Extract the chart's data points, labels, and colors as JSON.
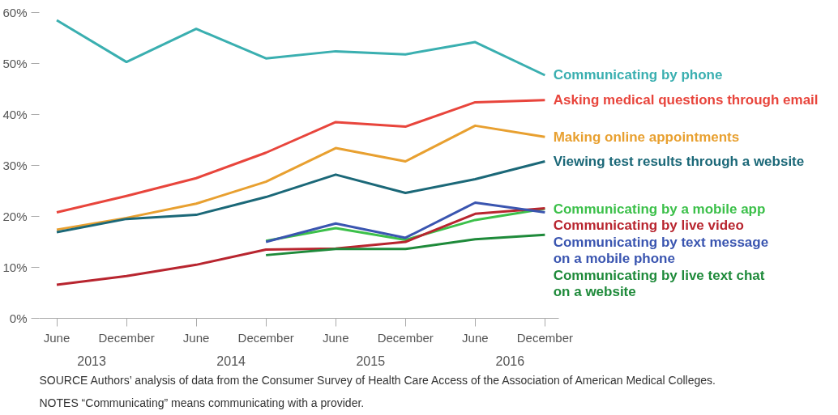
{
  "chart_data": {
    "type": "line",
    "categories": [
      "June",
      "December",
      "June",
      "December",
      "June",
      "December",
      "June",
      "December"
    ],
    "ylim": [
      0,
      60
    ],
    "yticks": [
      {
        "value": 0,
        "label": "0%"
      },
      {
        "value": 10,
        "label": "10%"
      },
      {
        "value": 20,
        "label": "20%"
      },
      {
        "value": 30,
        "label": "30%"
      },
      {
        "value": 40,
        "label": "40%"
      },
      {
        "value": 50,
        "label": "50%"
      },
      {
        "value": 60,
        "label": "60%"
      }
    ],
    "grid": false,
    "legend": false,
    "line_style": "solid",
    "marker": "none",
    "series": [
      {
        "name": "Communicating by phone",
        "color": "#3aafb0",
        "values": [
          58.5,
          50.3,
          56.8,
          51.0,
          52.4,
          51.8,
          54.2,
          47.7
        ]
      },
      {
        "name": "Asking medical questions through email",
        "color": "#e8453c",
        "values": [
          20.8,
          24.0,
          27.5,
          32.5,
          38.5,
          37.6,
          42.4,
          42.8
        ]
      },
      {
        "name": "Making online appointments",
        "color": "#e8a030",
        "values": [
          17.4,
          19.7,
          22.5,
          26.8,
          33.4,
          30.8,
          37.8,
          35.6
        ]
      },
      {
        "name": "Viewing test results through a website",
        "color": "#1b6878",
        "values": [
          16.9,
          19.5,
          20.3,
          23.8,
          28.2,
          24.6,
          27.3,
          30.8
        ]
      },
      {
        "name": "Communicating by a mobile app",
        "color": "#3cc04a",
        "values": [
          null,
          null,
          null,
          15.2,
          17.7,
          15.4,
          19.3,
          21.5
        ]
      },
      {
        "name": "Communicating by live video",
        "color": "#b8252f",
        "values": [
          6.6,
          8.3,
          10.5,
          13.5,
          13.7,
          15.0,
          20.5,
          21.6
        ]
      },
      {
        "name": "Communicating by text message\non a mobile phone",
        "color": "#3a55b0",
        "values": [
          null,
          null,
          null,
          15.0,
          18.6,
          15.8,
          22.7,
          20.8
        ]
      },
      {
        "name": "Communicating by live text chat\non a website",
        "color": "#1e8a3a",
        "values": [
          null,
          null,
          null,
          12.4,
          13.6,
          13.6,
          15.5,
          16.4
        ]
      }
    ],
    "annotations": [
      "2013",
      "2014",
      "2015",
      "2016",
      "SOURCE Authors’ analysis of data from the Consumer Survey of Health Care Access of the Association of American Medical Colleges.",
      "NOTES “Communicating” means communicating with a provider."
    ]
  }
}
